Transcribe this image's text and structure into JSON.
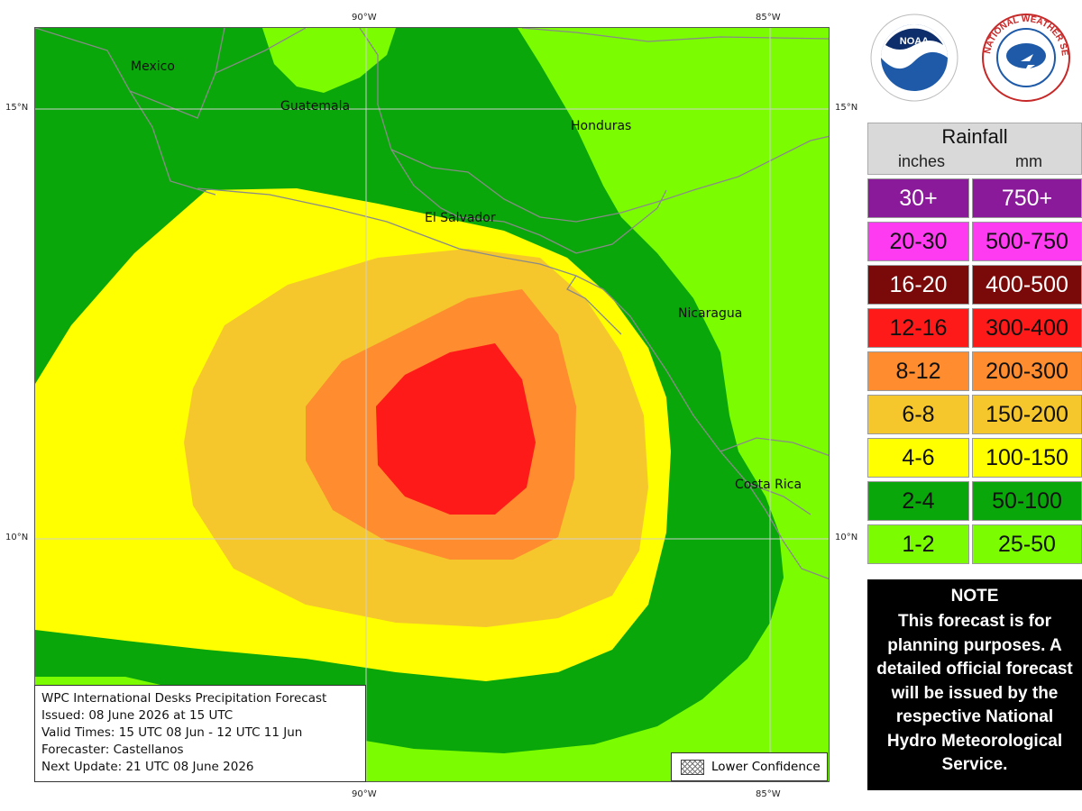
{
  "map": {
    "lon_labels_top": [
      "90°W",
      "85°W"
    ],
    "lon_labels_bottom": [
      "90°W",
      "85°W"
    ],
    "lat_labels_left": [
      "15°N",
      "10°N"
    ],
    "lat_labels_right": [
      "15°N",
      "10°N"
    ],
    "countries": [
      "Mexico",
      "Guatemala",
      "Honduras",
      "El Salvador",
      "Nicaragua",
      "Costa Rica"
    ]
  },
  "info_box": {
    "line1": "WPC International Desks Precipitation Forecast",
    "line2": "Issued: 08 June 2026 at 15 UTC",
    "line3": "Valid Times: 15 UTC 08 Jun - 12 UTC 11 Jun",
    "line4": "Forecaster: Castellanos",
    "line5": "Next Update: 21 UTC 08 June 2026"
  },
  "confidence_label": "Lower Confidence",
  "logos": {
    "noaa_text": "NOAA",
    "nws_text": "NATIONAL WEATHER SERVICE"
  },
  "legend": {
    "title": "Rainfall",
    "unit_in": "inches",
    "unit_mm": "mm",
    "rows": [
      {
        "in": "30+",
        "mm": "750+",
        "color": "#8b1a9b",
        "text": "#ffffff"
      },
      {
        "in": "20-30",
        "mm": "500-750",
        "color": "#ff3bf2",
        "text": "#111111"
      },
      {
        "in": "16-20",
        "mm": "400-500",
        "color": "#7a0a0a",
        "text": "#ffffff"
      },
      {
        "in": "12-16",
        "mm": "300-400",
        "color": "#ff1a1a",
        "text": "#111111"
      },
      {
        "in": "8-12",
        "mm": "200-300",
        "color": "#ff8c2e",
        "text": "#111111"
      },
      {
        "in": "6-8",
        "mm": "150-200",
        "color": "#f5c72d",
        "text": "#111111"
      },
      {
        "in": "4-6",
        "mm": "100-150",
        "color": "#ffff00",
        "text": "#111111"
      },
      {
        "in": "2-4",
        "mm": "50-100",
        "color": "#0aa70a",
        "text": "#111111"
      },
      {
        "in": "1-2",
        "mm": "25-50",
        "color": "#7cfc00",
        "text": "#111111"
      }
    ]
  },
  "note": {
    "title": "NOTE",
    "text": "This forecast is for planning purposes. A detailed official forecast will be issued by the respective National Hydro Meteorological Service."
  }
}
